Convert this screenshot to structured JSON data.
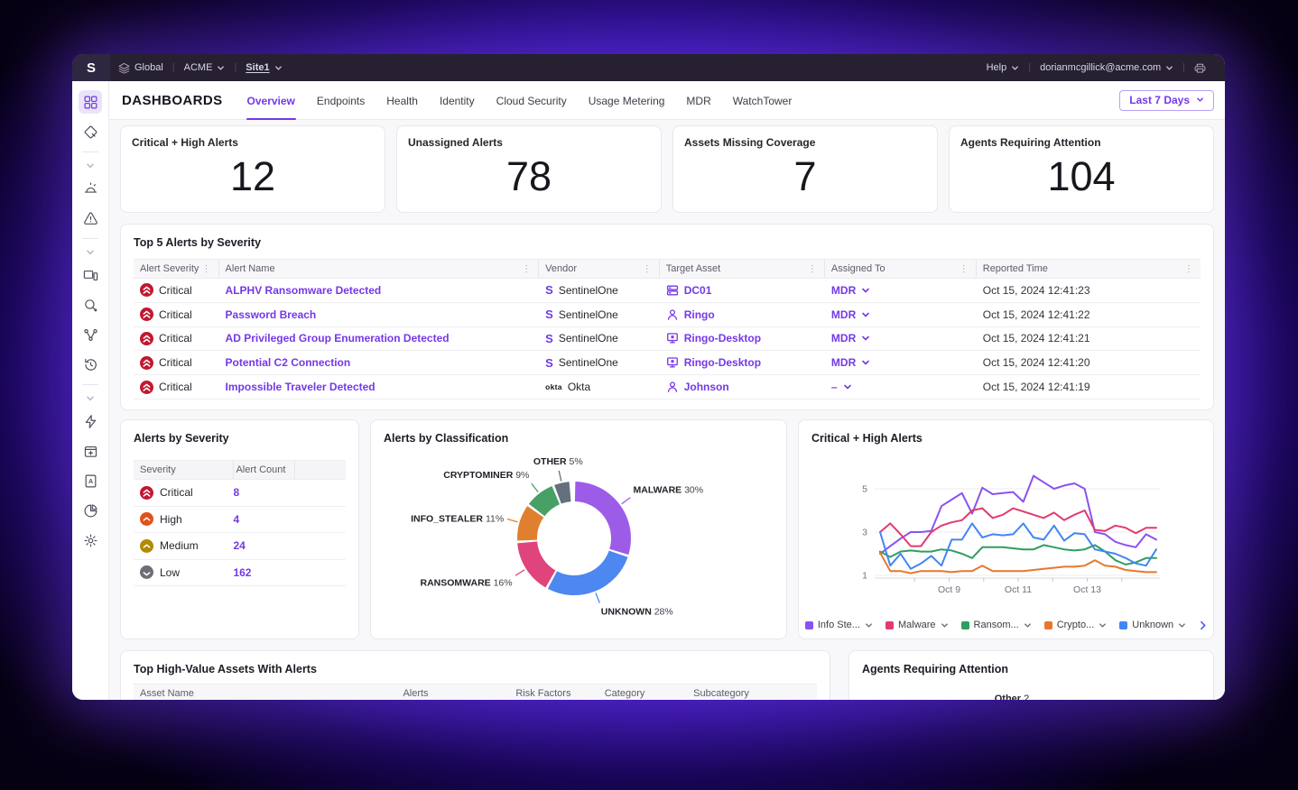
{
  "topbar": {
    "scope_label": "Global",
    "account_label": "ACME",
    "site_label": "Site1",
    "help_label": "Help",
    "user_email": "dorianmcgillick@acme.com"
  },
  "sidebar": {
    "icons": [
      "dashboard",
      "graph-explorer",
      "alarm",
      "alerts",
      "inventory",
      "search",
      "network",
      "history",
      "automation",
      "packages",
      "policy",
      "reports",
      "settings"
    ]
  },
  "header": {
    "title": "DASHBOARDS",
    "tabs": [
      {
        "label": "Overview",
        "active": true
      },
      {
        "label": "Endpoints"
      },
      {
        "label": "Health"
      },
      {
        "label": "Identity"
      },
      {
        "label": "Cloud Security"
      },
      {
        "label": "Usage Metering"
      },
      {
        "label": "MDR"
      },
      {
        "label": "WatchTower"
      }
    ],
    "time_range": "Last 7 Days"
  },
  "kpis": [
    {
      "label": "Critical + High Alerts",
      "value": "12"
    },
    {
      "label": "Unassigned Alerts",
      "value": "78"
    },
    {
      "label": "Assets Missing Coverage",
      "value": "7"
    },
    {
      "label": "Agents Requiring Attention",
      "value": "104"
    }
  ],
  "top_alerts": {
    "title": "Top 5 Alerts by Severity",
    "columns": [
      "Alert Severity",
      "Alert Name",
      "Vendor",
      "Target Asset",
      "Assigned To",
      "Reported Time"
    ],
    "rows": [
      {
        "level": "critical",
        "severity": "Critical",
        "name": "ALPHV Ransomware Detected",
        "vendor": {
          "name": "SentinelOne",
          "icon": "sentinelone"
        },
        "target": {
          "name": "DC01",
          "icon": "server"
        },
        "assigned": "MDR",
        "time": "Oct 15, 2024 12:41:23"
      },
      {
        "level": "critical",
        "severity": "Critical",
        "name": "Password Breach",
        "vendor": {
          "name": "SentinelOne",
          "icon": "sentinelone"
        },
        "target": {
          "name": "Ringo",
          "icon": "user"
        },
        "assigned": "MDR",
        "time": "Oct 15, 2024 12:41:22"
      },
      {
        "level": "critical",
        "severity": "Critical",
        "name": "AD Privileged Group Enumeration Detected",
        "vendor": {
          "name": "SentinelOne",
          "icon": "sentinelone"
        },
        "target": {
          "name": "Ringo-Desktop",
          "icon": "desktop"
        },
        "assigned": "MDR",
        "time": "Oct 15, 2024 12:41:21"
      },
      {
        "level": "critical",
        "severity": "Critical",
        "name": "Potential C2 Connection",
        "vendor": {
          "name": "SentinelOne",
          "icon": "sentinelone"
        },
        "target": {
          "name": "Ringo-Desktop",
          "icon": "desktop"
        },
        "assigned": "MDR",
        "time": "Oct 15, 2024 12:41:20"
      },
      {
        "level": "critical",
        "severity": "Critical",
        "name": "Impossible Traveler Detected",
        "vendor": {
          "name": "Okta",
          "icon": "okta"
        },
        "target": {
          "name": "Johnson",
          "icon": "user"
        },
        "assigned": "–",
        "time": "Oct 15, 2024 12:41:19"
      }
    ]
  },
  "alerts_by_severity": {
    "title": "Alerts by Severity",
    "columns": [
      "Severity",
      "Alert Count"
    ],
    "rows": [
      {
        "level": "critical",
        "label": "Critical",
        "count": "8"
      },
      {
        "level": "high",
        "label": "High",
        "count": "4"
      },
      {
        "level": "medium",
        "label": "Medium",
        "count": "24"
      },
      {
        "level": "low",
        "label": "Low",
        "count": "162"
      }
    ]
  },
  "chart_data": [
    {
      "type": "pie",
      "title": "Alerts by Classification",
      "donut": true,
      "start": "12-oclock",
      "direction": "clockwise",
      "slices": [
        {
          "label": "MALWARE",
          "pct": 30,
          "color": "#9d5ce8"
        },
        {
          "label": "UNKNOWN",
          "pct": 28,
          "color": "#4d87f0"
        },
        {
          "label": "RANSOMWARE",
          "pct": 16,
          "color": "#e0447c"
        },
        {
          "label": "INFO_STEALER",
          "pct": 11,
          "color": "#e0802e"
        },
        {
          "label": "CRYPTOMINER",
          "pct": 9,
          "color": "#47a065"
        },
        {
          "label": "OTHER",
          "pct": 5,
          "color": "#64707e"
        }
      ]
    },
    {
      "type": "line",
      "title": "Critical + High Alerts",
      "x_tick_labels": [
        "Oct 9",
        "Oct 11",
        "Oct 13"
      ],
      "y_ticks": [
        1,
        3,
        5
      ],
      "ylim": [
        0.6,
        6
      ],
      "grid": true,
      "legend_position": "bottom",
      "series": [
        {
          "name": "Info Stealer",
          "legend_label": "Info Ste...",
          "color": "#8b52f0",
          "values": [
            2.0,
            2.35,
            2.7,
            3.0,
            3.0,
            3.05,
            4.2,
            4.5,
            4.8,
            3.85,
            5.05,
            4.75,
            4.8,
            4.85,
            4.4,
            5.6,
            5.3,
            5.0,
            5.15,
            5.25,
            5.0,
            3.0,
            2.9,
            2.55,
            2.4,
            2.3,
            2.9,
            2.65
          ]
        },
        {
          "name": "Malware",
          "legend_label": "Malware",
          "color": "#e23a6e",
          "values": [
            3.0,
            3.4,
            2.9,
            2.35,
            2.35,
            3.0,
            3.3,
            3.45,
            3.55,
            4.0,
            4.1,
            3.65,
            3.8,
            4.1,
            3.95,
            3.8,
            3.65,
            3.9,
            3.55,
            3.8,
            4.0,
            3.1,
            3.05,
            3.3,
            3.2,
            2.95,
            3.2,
            3.2
          ]
        },
        {
          "name": "Ransomware",
          "legend_label": "Ransom...",
          "color": "#2f9e5f",
          "values": [
            2.1,
            1.85,
            2.1,
            2.15,
            2.1,
            2.1,
            2.2,
            2.15,
            2.0,
            1.8,
            2.3,
            2.3,
            2.3,
            2.25,
            2.2,
            2.2,
            2.4,
            2.3,
            2.2,
            2.15,
            2.2,
            2.4,
            2.1,
            1.7,
            1.5,
            1.6,
            1.8,
            1.8
          ]
        },
        {
          "name": "Cryptominer",
          "legend_label": "Crypto...",
          "color": "#e8772e",
          "values": [
            2.05,
            1.2,
            1.2,
            1.1,
            1.2,
            1.2,
            1.2,
            1.15,
            1.2,
            1.2,
            1.45,
            1.2,
            1.2,
            1.2,
            1.2,
            1.25,
            1.3,
            1.35,
            1.4,
            1.4,
            1.45,
            1.7,
            1.45,
            1.4,
            1.25,
            1.2,
            1.15,
            1.15
          ]
        },
        {
          "name": "Unknown",
          "legend_label": "Unknown",
          "color": "#4285f4",
          "values": [
            3.0,
            1.45,
            2.0,
            1.3,
            1.55,
            1.9,
            1.45,
            2.65,
            2.65,
            3.4,
            2.75,
            2.9,
            2.85,
            2.9,
            3.4,
            2.75,
            2.65,
            3.3,
            2.6,
            2.95,
            2.9,
            2.2,
            2.1,
            2.0,
            1.8,
            1.55,
            1.45,
            2.2
          ]
        }
      ]
    }
  ],
  "bottom_left": {
    "title": "Top High-Value Assets With Alerts",
    "columns": [
      "Asset Name",
      "Alerts",
      "Risk Factors",
      "Category",
      "Subcategory"
    ]
  },
  "bottom_right": {
    "title": "Agents Requiring Attention",
    "partial_label": "Other",
    "partial_value": "2"
  },
  "colors": {
    "accent": "#7538e8",
    "critical": "#c0182f",
    "high": "#e2511c",
    "medium": "#b08a00",
    "low": "#6e6e78"
  }
}
